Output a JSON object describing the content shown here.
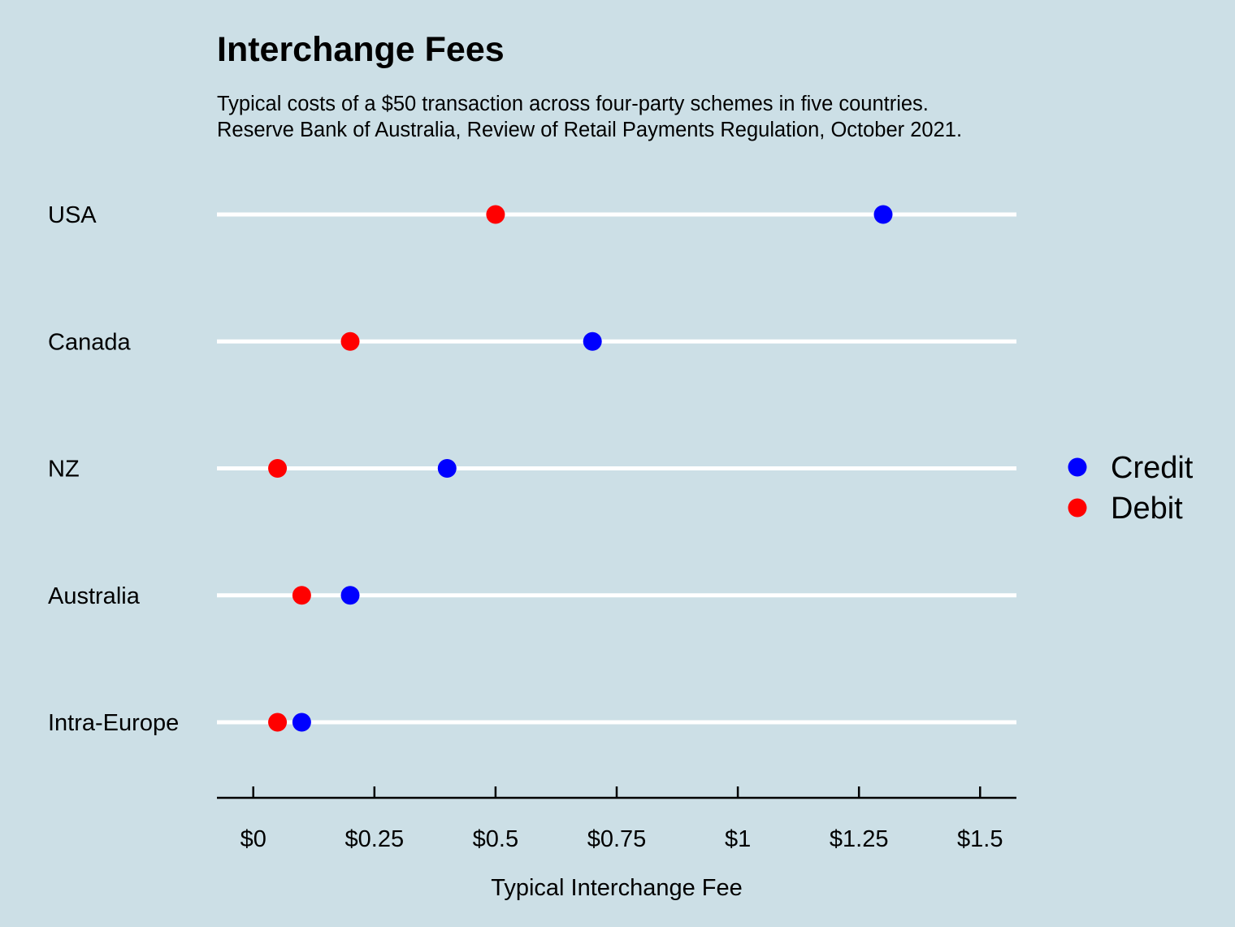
{
  "chart_data": {
    "type": "dot",
    "title": "Interchange Fees",
    "subtitle_lines": [
      "Typical costs of a $50 transaction across four-party schemes in five countries.",
      "Reserve Bank of Australia, Review of Retail Payments Regulation, October 2021."
    ],
    "xlabel": "Typical Interchange Fee",
    "ylabel": "",
    "categories": [
      "USA",
      "Canada",
      "NZ",
      "Australia",
      "Intra-Europe"
    ],
    "xlim": [
      -0.075,
      1.575
    ],
    "x_ticks": [
      0,
      0.25,
      0.5,
      0.75,
      1,
      1.25,
      1.5
    ],
    "x_tick_labels": [
      "$0",
      "$0.25",
      "$0.5",
      "$0.75",
      "$1",
      "$1.25",
      "$1.5"
    ],
    "series": [
      {
        "name": "Credit",
        "color": "#0000ff",
        "values": [
          1.3,
          0.7,
          0.4,
          0.2,
          0.1
        ]
      },
      {
        "name": "Debit",
        "color": "#ff0000",
        "values": [
          0.5,
          0.2,
          0.05,
          0.1,
          0.05
        ]
      }
    ],
    "legend_position": "right",
    "grid": "horizontal white lines per category",
    "background_color": "#ccdfe6"
  }
}
